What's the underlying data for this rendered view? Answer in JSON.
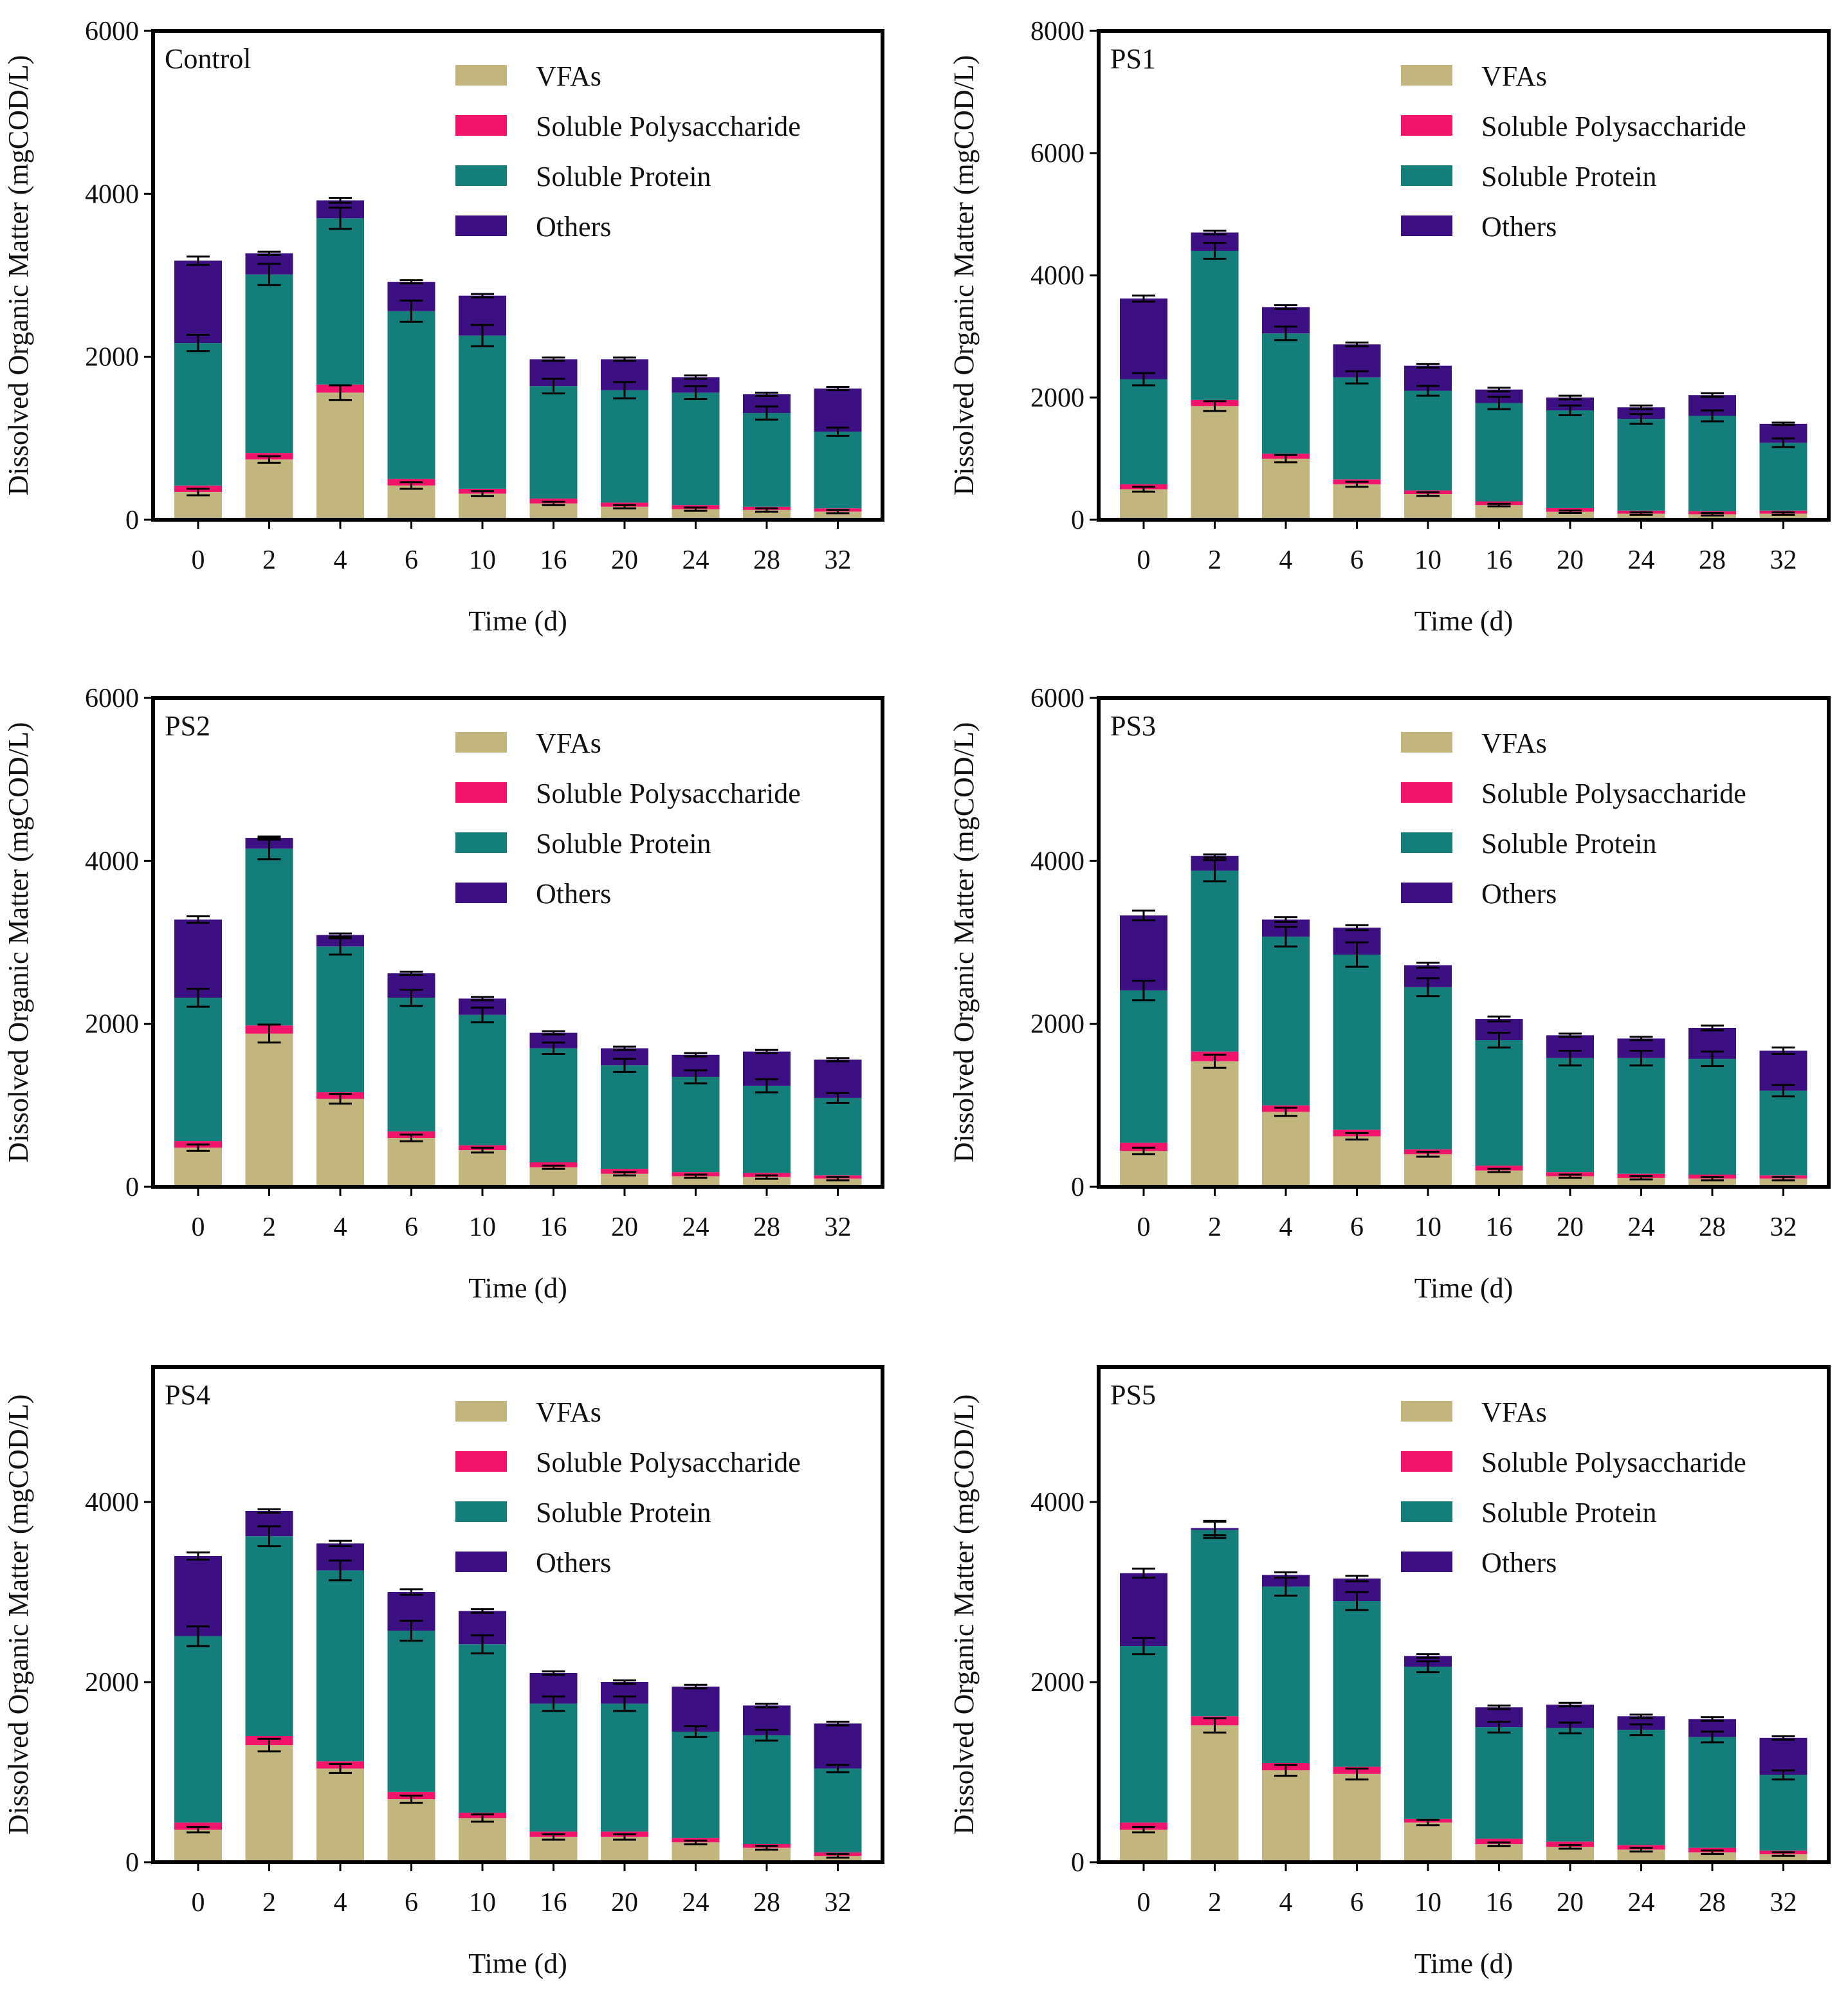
{
  "figure": {
    "shared_xlabel": "Time (d)",
    "shared_ylabel": "Dissolved Organic Matter (mgCOD/L)"
  },
  "legend": [
    {
      "name": "VFAs",
      "color": "#c2b57d"
    },
    {
      "name": "Soluble Polysaccharide",
      "color": "#f2146b"
    },
    {
      "name": "Soluble Protein",
      "color": "#137e7a"
    },
    {
      "name": "Others",
      "color": "#3c0f82"
    }
  ],
  "chart_data": [
    {
      "type": "bar",
      "stacked": true,
      "title": "Control",
      "xlabel": "Time (d)",
      "ylabel": "Dissolved Organic Matter (mgCOD/L)",
      "ylim": [
        0,
        6000
      ],
      "yticks": [
        0,
        2000,
        4000,
        6000
      ],
      "categories": [
        "0",
        "2",
        "4",
        "6",
        "10",
        "16",
        "20",
        "24",
        "28",
        "32"
      ],
      "series": [
        {
          "name": "VFAs",
          "values": [
            340,
            740,
            1560,
            420,
            320,
            200,
            160,
            130,
            120,
            100
          ]
        },
        {
          "name": "Soluble Polysaccharide",
          "values": [
            80,
            80,
            100,
            80,
            60,
            60,
            50,
            50,
            40,
            40
          ]
        },
        {
          "name": "Soluble Protein",
          "values": [
            1750,
            2190,
            2040,
            2060,
            1880,
            1380,
            1380,
            1380,
            1150,
            940
          ]
        },
        {
          "name": "Others",
          "values": [
            1010,
            260,
            220,
            360,
            490,
            330,
            380,
            190,
            230,
            530
          ]
        }
      ],
      "errors": {
        "Soluble Protein": [
          100,
          130,
          130,
          130,
          130,
          90,
          100,
          80,
          80,
          50
        ],
        "Others": [
          50,
          20,
          30,
          20,
          20,
          20,
          20,
          20,
          20,
          20
        ],
        "VFAs": [
          40,
          40,
          90,
          40,
          30,
          20,
          20,
          20,
          20,
          20
        ]
      }
    },
    {
      "type": "bar",
      "stacked": true,
      "title": "PS1",
      "xlabel": "Time (d)",
      "ylabel": "Dissolved Organic Matter (mgCOD/L)",
      "ylim": [
        0,
        8000
      ],
      "yticks": [
        0,
        2000,
        4000,
        6000,
        8000
      ],
      "categories": [
        "0",
        "2",
        "4",
        "6",
        "10",
        "16",
        "20",
        "24",
        "28",
        "32"
      ],
      "series": [
        {
          "name": "VFAs",
          "values": [
            500,
            1860,
            1000,
            580,
            420,
            240,
            130,
            100,
            90,
            100
          ]
        },
        {
          "name": "Soluble Polysaccharide",
          "values": [
            80,
            100,
            80,
            80,
            60,
            60,
            60,
            50,
            50,
            50
          ]
        },
        {
          "name": "Soluble Protein",
          "values": [
            1720,
            2440,
            1970,
            1670,
            1630,
            1610,
            1600,
            1500,
            1560,
            1110
          ]
        },
        {
          "name": "Others",
          "values": [
            1320,
            300,
            430,
            540,
            410,
            220,
            210,
            190,
            340,
            310
          ]
        }
      ],
      "errors": {
        "Soluble Protein": [
          100,
          130,
          110,
          100,
          80,
          100,
          80,
          80,
          90,
          70
        ],
        "Others": [
          50,
          30,
          30,
          30,
          30,
          30,
          30,
          30,
          30,
          20
        ],
        "VFAs": [
          40,
          80,
          60,
          40,
          30,
          20,
          20,
          20,
          20,
          20
        ]
      }
    },
    {
      "type": "bar",
      "stacked": true,
      "title": "PS2",
      "xlabel": "Time (d)",
      "ylabel": "Dissolved Organic Matter (mgCOD/L)",
      "ylim": [
        0,
        6000
      ],
      "yticks": [
        0,
        2000,
        4000,
        6000
      ],
      "categories": [
        "0",
        "2",
        "4",
        "6",
        "10",
        "16",
        "20",
        "24",
        "28",
        "32"
      ],
      "series": [
        {
          "name": "VFAs",
          "values": [
            480,
            1880,
            1080,
            600,
            450,
            240,
            160,
            130,
            120,
            100
          ]
        },
        {
          "name": "Soluble Polysaccharide",
          "values": [
            80,
            100,
            80,
            80,
            60,
            60,
            60,
            50,
            50,
            40
          ]
        },
        {
          "name": "Soluble Protein",
          "values": [
            1760,
            2170,
            1790,
            1640,
            1600,
            1400,
            1270,
            1170,
            1070,
            950
          ]
        },
        {
          "name": "Others",
          "values": [
            960,
            130,
            140,
            300,
            200,
            190,
            210,
            270,
            420,
            470
          ]
        }
      ],
      "errors": {
        "Soluble Protein": [
          110,
          130,
          100,
          100,
          90,
          70,
          80,
          80,
          80,
          60
        ],
        "Others": [
          40,
          20,
          20,
          20,
          20,
          20,
          20,
          20,
          20,
          20
        ],
        "VFAs": [
          40,
          110,
          60,
          40,
          30,
          20,
          20,
          20,
          20,
          20
        ]
      }
    },
    {
      "type": "bar",
      "stacked": true,
      "title": "PS3",
      "xlabel": "Time (d)",
      "ylabel": "Dissolved Organic Matter (mgCOD/L)",
      "ylim": [
        0,
        6000
      ],
      "yticks": [
        0,
        2000,
        4000,
        6000
      ],
      "categories": [
        "0",
        "2",
        "4",
        "6",
        "10",
        "16",
        "20",
        "24",
        "28",
        "32"
      ],
      "series": [
        {
          "name": "VFAs",
          "values": [
            440,
            1540,
            920,
            620,
            400,
            200,
            130,
            110,
            100,
            100
          ]
        },
        {
          "name": "Soluble Polysaccharide",
          "values": [
            100,
            120,
            80,
            80,
            60,
            60,
            50,
            50,
            50,
            40
          ]
        },
        {
          "name": "Soluble Protein",
          "values": [
            1870,
            2220,
            2070,
            2150,
            1990,
            1540,
            1400,
            1420,
            1420,
            1040
          ]
        },
        {
          "name": "Others",
          "values": [
            920,
            180,
            210,
            330,
            270,
            260,
            280,
            240,
            380,
            490
          ]
        }
      ],
      "errors": {
        "Soluble Protein": [
          120,
          130,
          120,
          150,
          110,
          90,
          90,
          90,
          90,
          70
        ],
        "Others": [
          60,
          20,
          30,
          30,
          30,
          30,
          20,
          20,
          30,
          40
        ],
        "VFAs": [
          40,
          80,
          50,
          40,
          30,
          20,
          20,
          20,
          20,
          20
        ]
      }
    },
    {
      "type": "bar",
      "stacked": true,
      "title": "PS4",
      "xlabel": "Time (d)",
      "ylabel": "Dissolved Organic Matter (mgCOD/L)",
      "ylim": [
        0,
        5500
      ],
      "yticks": [
        0,
        2000,
        4000
      ],
      "categories": [
        "0",
        "2",
        "4",
        "6",
        "10",
        "16",
        "20",
        "24",
        "28",
        "32"
      ],
      "series": [
        {
          "name": "VFAs",
          "values": [
            360,
            1300,
            1040,
            700,
            490,
            280,
            280,
            220,
            160,
            70
          ]
        },
        {
          "name": "Soluble Polysaccharide",
          "values": [
            80,
            100,
            80,
            80,
            60,
            60,
            60,
            50,
            40,
            40
          ]
        },
        {
          "name": "Soluble Protein",
          "values": [
            2070,
            2220,
            2120,
            1790,
            1870,
            1420,
            1420,
            1180,
            1210,
            930
          ]
        },
        {
          "name": "Others",
          "values": [
            890,
            280,
            300,
            430,
            370,
            340,
            240,
            500,
            330,
            500
          ]
        }
      ],
      "errors": {
        "Soluble Protein": [
          110,
          110,
          110,
          110,
          100,
          80,
          80,
          60,
          60,
          40
        ],
        "Others": [
          40,
          20,
          30,
          30,
          20,
          20,
          20,
          20,
          20,
          20
        ],
        "VFAs": [
          30,
          70,
          50,
          40,
          40,
          30,
          30,
          20,
          20,
          20
        ]
      }
    },
    {
      "type": "bar",
      "stacked": true,
      "title": "PS5",
      "xlabel": "Time (d)",
      "ylabel": "Dissolved Organic Matter (mgCOD/L)",
      "ylim": [
        0,
        5500
      ],
      "yticks": [
        0,
        2000,
        4000
      ],
      "categories": [
        "0",
        "2",
        "4",
        "6",
        "10",
        "16",
        "20",
        "24",
        "28",
        "32"
      ],
      "series": [
        {
          "name": "VFAs",
          "values": [
            360,
            1520,
            1020,
            980,
            440,
            200,
            170,
            140,
            110,
            90
          ]
        },
        {
          "name": "Soluble Polysaccharide",
          "values": [
            80,
            100,
            80,
            80,
            40,
            60,
            60,
            50,
            50,
            40
          ]
        },
        {
          "name": "Soluble Protein",
          "values": [
            1960,
            2070,
            1960,
            1840,
            1690,
            1240,
            1260,
            1280,
            1230,
            840
          ]
        },
        {
          "name": "Others",
          "values": [
            810,
            20,
            130,
            250,
            120,
            220,
            260,
            150,
            200,
            410
          ]
        }
      ],
      "errors": {
        "Soluble Protein": [
          90,
          90,
          100,
          100,
          60,
          60,
          60,
          60,
          60,
          50
        ],
        "Others": [
          50,
          80,
          30,
          30,
          20,
          20,
          20,
          20,
          20,
          20
        ],
        "VFAs": [
          30,
          80,
          60,
          60,
          30,
          20,
          20,
          20,
          20,
          20
        ]
      }
    }
  ]
}
